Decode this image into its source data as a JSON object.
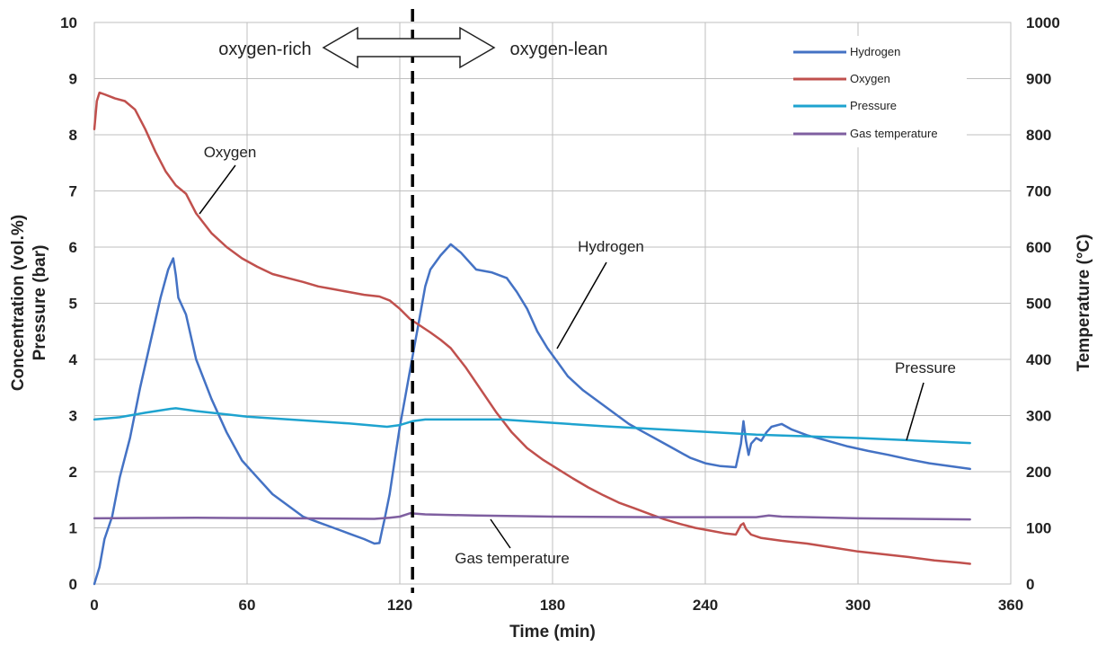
{
  "chart_data": {
    "type": "line",
    "xlabel": "Time (min)",
    "ylabel_left_line1": "Concentration (vol.%)",
    "ylabel_left_line2": "Pressure (bar)",
    "ylabel_right": "Temperature (°C)",
    "xlim": [
      0,
      360
    ],
    "ylim_left": [
      0,
      10
    ],
    "ylim_right": [
      0,
      1000
    ],
    "x_ticks": [
      "0",
      "60",
      "120",
      "180",
      "240",
      "300",
      "360"
    ],
    "y_left_ticks": [
      "0",
      "1",
      "2",
      "3",
      "4",
      "5",
      "6",
      "7",
      "8",
      "9",
      "10"
    ],
    "y_right_ticks": [
      "0",
      "100",
      "200",
      "300",
      "400",
      "500",
      "600",
      "700",
      "800",
      "900",
      "1000"
    ],
    "grid": true,
    "legend_position": "top-right",
    "divider_x": 125,
    "regions": {
      "left": "oxygen-rich",
      "right": "oxygen-lean"
    },
    "series": [
      {
        "name": "Hydrogen",
        "color": "#4472c4",
        "axis": "left",
        "x": [
          0,
          2,
          4,
          7,
          10,
          14,
          18,
          22,
          26,
          29,
          31,
          32,
          33,
          36,
          40,
          46,
          52,
          58,
          64,
          70,
          76,
          82,
          88,
          94,
          100,
          106,
          110,
          112,
          113,
          114,
          116,
          118,
          120,
          122,
          124,
          126,
          128,
          130,
          132,
          136,
          140,
          144,
          150,
          156,
          162,
          166,
          170,
          174,
          178,
          182,
          186,
          192,
          198,
          204,
          210,
          216,
          222,
          228,
          234,
          240,
          246,
          252,
          254,
          255,
          256,
          257,
          258,
          260,
          262,
          264,
          266,
          270,
          274,
          280,
          288,
          296,
          304,
          312,
          320,
          328,
          336,
          344
        ],
        "values": [
          0.0,
          0.3,
          0.8,
          1.2,
          1.9,
          2.6,
          3.5,
          4.3,
          5.1,
          5.6,
          5.8,
          5.5,
          5.1,
          4.8,
          4.0,
          3.3,
          2.7,
          2.2,
          1.9,
          1.6,
          1.4,
          1.2,
          1.1,
          1.0,
          0.9,
          0.8,
          0.72,
          0.73,
          0.95,
          1.15,
          1.6,
          2.2,
          2.8,
          3.3,
          3.8,
          4.3,
          4.8,
          5.3,
          5.6,
          5.85,
          6.05,
          5.9,
          5.6,
          5.55,
          5.45,
          5.2,
          4.9,
          4.5,
          4.2,
          3.95,
          3.7,
          3.45,
          3.25,
          3.05,
          2.85,
          2.7,
          2.55,
          2.4,
          2.25,
          2.15,
          2.1,
          2.08,
          2.5,
          2.9,
          2.55,
          2.3,
          2.5,
          2.6,
          2.55,
          2.7,
          2.8,
          2.85,
          2.75,
          2.65,
          2.55,
          2.45,
          2.37,
          2.3,
          2.22,
          2.15,
          2.1,
          2.05
        ]
      },
      {
        "name": "Oxygen",
        "color": "#c0504d",
        "axis": "left",
        "x": [
          0,
          1,
          2,
          4,
          8,
          12,
          16,
          20,
          24,
          28,
          32,
          36,
          40,
          46,
          52,
          58,
          64,
          70,
          76,
          82,
          88,
          94,
          100,
          106,
          112,
          116,
          120,
          124,
          128,
          132,
          136,
          140,
          146,
          152,
          158,
          164,
          170,
          176,
          182,
          188,
          194,
          200,
          206,
          212,
          218,
          224,
          230,
          236,
          242,
          248,
          252,
          254,
          255,
          256,
          258,
          262,
          270,
          280,
          290,
          300,
          310,
          320,
          330,
          340,
          344
        ],
        "values": [
          8.1,
          8.6,
          8.75,
          8.72,
          8.65,
          8.6,
          8.45,
          8.1,
          7.7,
          7.35,
          7.1,
          6.95,
          6.6,
          6.25,
          6.0,
          5.8,
          5.65,
          5.52,
          5.45,
          5.38,
          5.3,
          5.25,
          5.2,
          5.15,
          5.12,
          5.05,
          4.9,
          4.72,
          4.6,
          4.48,
          4.35,
          4.2,
          3.85,
          3.45,
          3.05,
          2.7,
          2.42,
          2.22,
          2.05,
          1.88,
          1.72,
          1.58,
          1.45,
          1.35,
          1.25,
          1.15,
          1.07,
          1.0,
          0.95,
          0.9,
          0.88,
          1.05,
          1.08,
          0.98,
          0.88,
          0.82,
          0.77,
          0.72,
          0.65,
          0.58,
          0.53,
          0.48,
          0.42,
          0.38,
          0.36
        ]
      },
      {
        "name": "Pressure",
        "color": "#1ea3cf",
        "axis": "left",
        "x": [
          0,
          10,
          20,
          30,
          32,
          40,
          50,
          60,
          80,
          100,
          115,
          120,
          125,
          130,
          140,
          160,
          180,
          200,
          220,
          240,
          260,
          280,
          300,
          320,
          344
        ],
        "values": [
          2.93,
          2.97,
          3.05,
          3.12,
          3.13,
          3.08,
          3.03,
          2.98,
          2.92,
          2.86,
          2.8,
          2.83,
          2.9,
          2.93,
          2.93,
          2.93,
          2.87,
          2.81,
          2.76,
          2.71,
          2.66,
          2.63,
          2.6,
          2.56,
          2.51
        ]
      },
      {
        "name": "Gas temperature",
        "color": "#7f5fa0",
        "axis": "right",
        "x": [
          0,
          40,
          80,
          110,
          116,
          120,
          124,
          130,
          150,
          180,
          220,
          260,
          265,
          270,
          300,
          344
        ],
        "values": [
          117,
          118,
          117,
          116,
          118,
          120,
          126,
          124,
          122,
          120,
          119,
          119,
          122,
          120,
          117,
          115
        ]
      }
    ],
    "annotations": [
      {
        "text": "Oxygen",
        "series": "Oxygen"
      },
      {
        "text": "Hydrogen",
        "series": "Hydrogen"
      },
      {
        "text": "Pressure",
        "series": "Pressure"
      },
      {
        "text": "Gas temperature",
        "series": "Gas temperature"
      }
    ]
  }
}
